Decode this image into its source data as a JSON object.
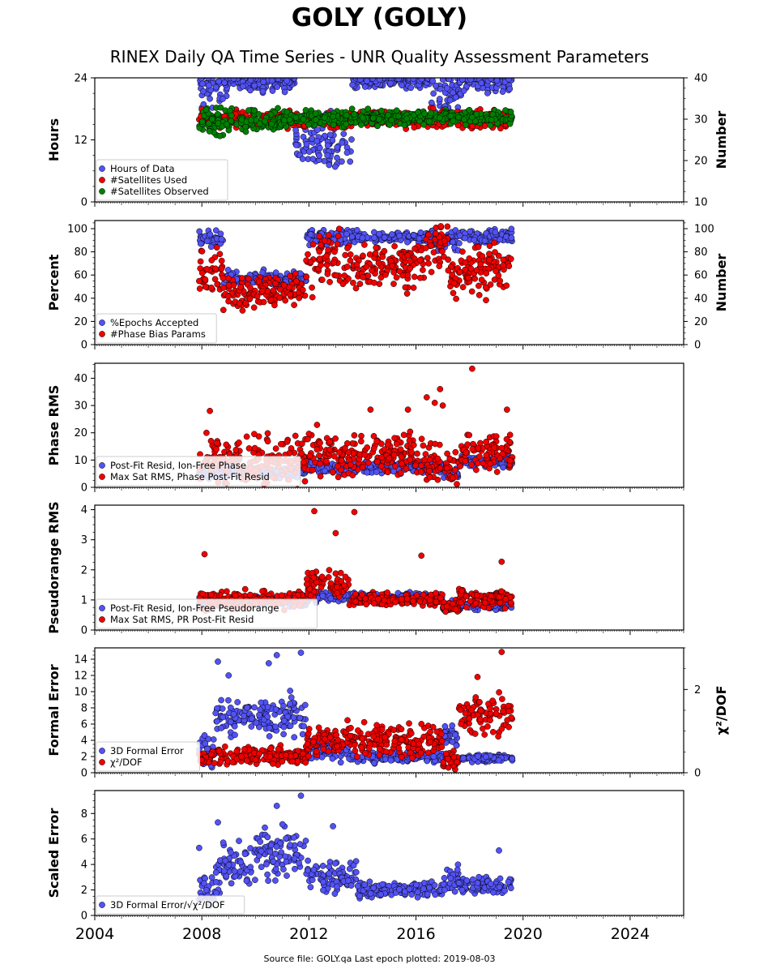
{
  "header": {
    "title": "GOLY (GOLY)",
    "subtitle": "RINEX Daily QA Time Series - UNR Quality Assessment Parameters"
  },
  "footer": {
    "source": "Source file: GOLY.qa Last epoch plotted: 2019-08-03"
  },
  "colors": {
    "blue": "#5252f5",
    "red": "#f00000",
    "green": "#008000"
  },
  "chart_data": [
    {
      "type": "scatter",
      "ylabel": "Hours",
      "ylabel_right": "Number",
      "xlim": [
        2004,
        2026
      ],
      "xticks": [
        "2004",
        "2008",
        "2012",
        "2016",
        "2020",
        "2024"
      ],
      "ylim": [
        0,
        24
      ],
      "yticks": [
        "0",
        "12",
        "24"
      ],
      "ylim_right": [
        10,
        40
      ],
      "yticks_right": [
        "10",
        "20",
        "30",
        "40"
      ],
      "legend_position": "lower-left",
      "series": [
        {
          "name": "Hours of Data",
          "color": "blue",
          "axis": "left",
          "segments": [
            [
              2007.9,
              2009.0,
              22.5,
              3
            ],
            [
              2009.0,
              2011.0,
              23.5,
              1
            ],
            [
              2011.0,
              2011.5,
              23.0,
              2
            ],
            [
              2011.5,
              2012.3,
              12.0,
              3
            ],
            [
              2012.3,
              2013.6,
              11.0,
              3
            ],
            [
              2013.6,
              2016.5,
              23.5,
              0.8
            ],
            [
              2016.5,
              2017.6,
              21.5,
              2.5
            ],
            [
              2017.6,
              2019.6,
              23.2,
              1.2
            ]
          ]
        },
        {
          "name": "#Satellites Used",
          "color": "red",
          "axis": "right",
          "segments": [
            [
              2007.9,
              2019.6,
              30.0,
              1
            ]
          ]
        },
        {
          "name": "#Satellites Observed",
          "color": "green",
          "axis": "right",
          "segments": [
            [
              2007.9,
              2011.0,
              29.5,
              1.5
            ],
            [
              2011.0,
              2019.6,
              30.3,
              0.8
            ]
          ]
        }
      ]
    },
    {
      "type": "scatter",
      "ylabel": "Percent",
      "ylabel_right": "Number",
      "xlim": [
        2004,
        2026
      ],
      "ylim": [
        0,
        107
      ],
      "yticks": [
        "0",
        "20",
        "40",
        "60",
        "80",
        "100"
      ],
      "ylim_right": [
        0,
        107
      ],
      "yticks_right": [
        "0",
        "20",
        "40",
        "60",
        "80",
        "100"
      ],
      "legend_position": "lower-left",
      "series": [
        {
          "name": "%Epochs Accepted",
          "color": "blue",
          "axis": "left",
          "segments": [
            [
              2007.9,
              2008.8,
              92,
              3
            ],
            [
              2008.8,
              2011.9,
              57,
              3
            ],
            [
              2011.9,
              2013.8,
              93,
              3
            ],
            [
              2013.8,
              2016.5,
              93,
              2
            ],
            [
              2016.5,
              2017.6,
              90,
              4
            ],
            [
              2017.6,
              2019.6,
              93,
              3
            ]
          ]
        },
        {
          "name": "#Phase Bias Params",
          "color": "red",
          "axis": "right",
          "segments": [
            [
              2007.9,
              2008.8,
              62,
              10
            ],
            [
              2008.8,
              2010.0,
              44,
              6
            ],
            [
              2010.0,
              2011.9,
              48,
              6
            ],
            [
              2011.9,
              2013.2,
              72,
              12
            ],
            [
              2013.2,
              2016.3,
              67,
              9
            ],
            [
              2016.3,
              2017.2,
              87,
              12
            ],
            [
              2017.2,
              2018.2,
              60,
              8
            ],
            [
              2018.2,
              2019.6,
              66,
              10
            ]
          ]
        }
      ]
    },
    {
      "type": "scatter",
      "ylabel": "Phase RMS",
      "xlim": [
        2004,
        2026
      ],
      "ylim": [
        0,
        45.5
      ],
      "yticks": [
        "0",
        "10",
        "20",
        "30",
        "40"
      ],
      "legend_position": "lower-left",
      "series": [
        {
          "name": "Post-Fit Resid, Ion-Free Phase",
          "color": "blue",
          "axis": "left",
          "segments": [
            [
              2007.9,
              2011.9,
              5.5,
              1
            ],
            [
              2011.9,
              2017.0,
              7.5,
              1
            ],
            [
              2017.0,
              2017.6,
              4.5,
              1
            ],
            [
              2017.6,
              2019.6,
              9.5,
              1
            ]
          ]
        },
        {
          "name": "Max Sat RMS, Phase Post-Fit Resid",
          "color": "red",
          "axis": "left",
          "segments": [
            [
              2007.9,
              2011.9,
              10,
              4
            ],
            [
              2011.9,
              2017.0,
              12,
              4
            ],
            [
              2017.0,
              2017.6,
              7,
              3
            ],
            [
              2017.6,
              2019.6,
              13,
              3
            ]
          ],
          "outliers": [
            [
              2018.1,
              43.5
            ],
            [
              2016.9,
              36
            ],
            [
              2016.4,
              33
            ],
            [
              2015.7,
              28.5
            ],
            [
              2014.3,
              28.5
            ],
            [
              2019.4,
              28.5
            ],
            [
              2008.3,
              28
            ],
            [
              2016.7,
              31
            ],
            [
              2017.0,
              30
            ]
          ]
        }
      ]
    },
    {
      "type": "scatter",
      "ylabel": "Pseudorange RMS",
      "xlim": [
        2004,
        2026
      ],
      "ylim": [
        0,
        4.15
      ],
      "yticks": [
        "0",
        "1",
        "2",
        "3",
        "4"
      ],
      "legend_position": "lower-left",
      "series": [
        {
          "name": "Post-Fit Resid, Ion-Free Pseudorange",
          "color": "blue",
          "axis": "left",
          "segments": [
            [
              2007.9,
              2011.9,
              0.95,
              0.08
            ],
            [
              2011.9,
              2017.0,
              1.1,
              0.08
            ],
            [
              2017.0,
              2017.6,
              0.8,
              0.08
            ],
            [
              2017.6,
              2019.6,
              0.8,
              0.06
            ]
          ]
        },
        {
          "name": "Max Sat RMS, PR Post-Fit Resid",
          "color": "red",
          "axis": "left",
          "segments": [
            [
              2007.9,
              2011.9,
              1.0,
              0.15
            ],
            [
              2011.9,
              2013.5,
              1.5,
              0.2
            ],
            [
              2013.5,
              2017.0,
              1.0,
              0.1
            ],
            [
              2017.0,
              2017.6,
              0.75,
              0.1
            ],
            [
              2017.6,
              2019.6,
              1.05,
              0.15
            ]
          ],
          "outliers": [
            [
              2012.2,
              3.95
            ],
            [
              2013.7,
              3.92
            ],
            [
              2013.0,
              3.22
            ],
            [
              2008.1,
              2.52
            ],
            [
              2016.2,
              2.47
            ],
            [
              2019.2,
              2.27
            ]
          ]
        }
      ]
    },
    {
      "type": "scatter",
      "ylabel": "Formal Error",
      "ylabel_right": "χ²/DOF",
      "xlim": [
        2004,
        2026
      ],
      "ylim": [
        0,
        15.4
      ],
      "yticks": [
        "0",
        "2",
        "4",
        "6",
        "8",
        "10",
        "12",
        "14"
      ],
      "ylim_right": [
        0,
        3.0
      ],
      "yticks_right": [
        "0",
        "2"
      ],
      "legend_position": "lower-left",
      "series": [
        {
          "name": "3D Formal Error",
          "color": "blue",
          "axis": "left",
          "segments": [
            [
              2007.9,
              2008.5,
              3.0,
              1.2
            ],
            [
              2008.5,
              2011.9,
              6.8,
              1.0
            ],
            [
              2011.9,
              2013.5,
              2.8,
              0.6
            ],
            [
              2013.5,
              2017.0,
              1.9,
              0.3
            ],
            [
              2017.0,
              2017.6,
              4.5,
              0.8
            ],
            [
              2017.6,
              2019.6,
              1.8,
              0.2
            ]
          ],
          "outliers": [
            [
              2011.7,
              14.8
            ],
            [
              2010.8,
              14.5
            ],
            [
              2010.5,
              13.5
            ],
            [
              2008.6,
              13.7
            ],
            [
              2009.0,
              12.0
            ],
            [
              2011.3,
              10.1
            ]
          ]
        },
        {
          "name": "χ²/DOF",
          "color": "red",
          "axis": "right",
          "segments": [
            [
              2007.9,
              2011.9,
              0.4,
              0.1
            ],
            [
              2011.9,
              2017.0,
              0.8,
              0.18
            ],
            [
              2017.0,
              2017.6,
              0.3,
              0.1
            ],
            [
              2017.6,
              2019.6,
              1.4,
              0.2
            ]
          ],
          "outliers": [
            [
              2019.2,
              2.9
            ],
            [
              2018.3,
              2.3
            ]
          ]
        }
      ]
    },
    {
      "type": "scatter",
      "ylabel": "Scaled Error",
      "xlim": [
        2004,
        2026
      ],
      "ylim": [
        0,
        9.8
      ],
      "yticks": [
        "0",
        "2",
        "4",
        "6",
        "8"
      ],
      "legend_position": "lower-left",
      "series": [
        {
          "name": "3D Formal Error/√χ²/DOF",
          "color": "blue",
          "axis": "left",
          "segments": [
            [
              2007.9,
              2008.5,
              2.0,
              0.5
            ],
            [
              2008.5,
              2010.0,
              3.8,
              0.8
            ],
            [
              2010.0,
              2011.9,
              4.8,
              1.0
            ],
            [
              2011.9,
              2013.8,
              3.0,
              0.6
            ],
            [
              2013.8,
              2017.0,
              2.0,
              0.3
            ],
            [
              2017.0,
              2017.6,
              2.8,
              0.5
            ],
            [
              2017.6,
              2019.6,
              2.4,
              0.3
            ]
          ],
          "outliers": [
            [
              2011.7,
              9.4
            ],
            [
              2010.8,
              8.6
            ],
            [
              2008.6,
              7.3
            ],
            [
              2012.9,
              7.0
            ],
            [
              2019.1,
              5.1
            ],
            [
              2007.9,
              5.3
            ]
          ]
        }
      ]
    }
  ]
}
